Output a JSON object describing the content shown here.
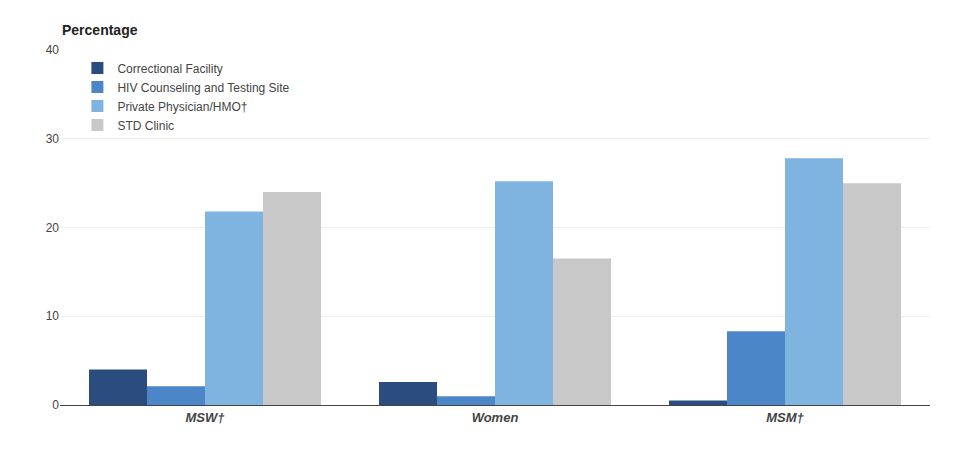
{
  "chart_data": {
    "type": "bar",
    "ylabel": "Percentage",
    "categories": [
      "MSW†",
      "Women",
      "MSM†"
    ],
    "series": [
      {
        "name": "Correctional Facility",
        "color": "#2b4c7e",
        "values": [
          4.0,
          2.6,
          0.5
        ]
      },
      {
        "name": "HIV Counseling and Testing Site",
        "color": "#4b86c8",
        "values": [
          2.1,
          1.0,
          8.3
        ]
      },
      {
        "name": "Private Physician/HMO†",
        "color": "#7fb3e0",
        "values": [
          21.8,
          25.2,
          27.8
        ]
      },
      {
        "name": "STD Clinic",
        "color": "#c8c8c8",
        "values": [
          24.0,
          16.5,
          25.0
        ]
      }
    ],
    "ylim": [
      0,
      40
    ],
    "yticks": [
      0,
      10,
      20,
      30,
      40
    ],
    "grid": true,
    "legend": "upper left"
  }
}
